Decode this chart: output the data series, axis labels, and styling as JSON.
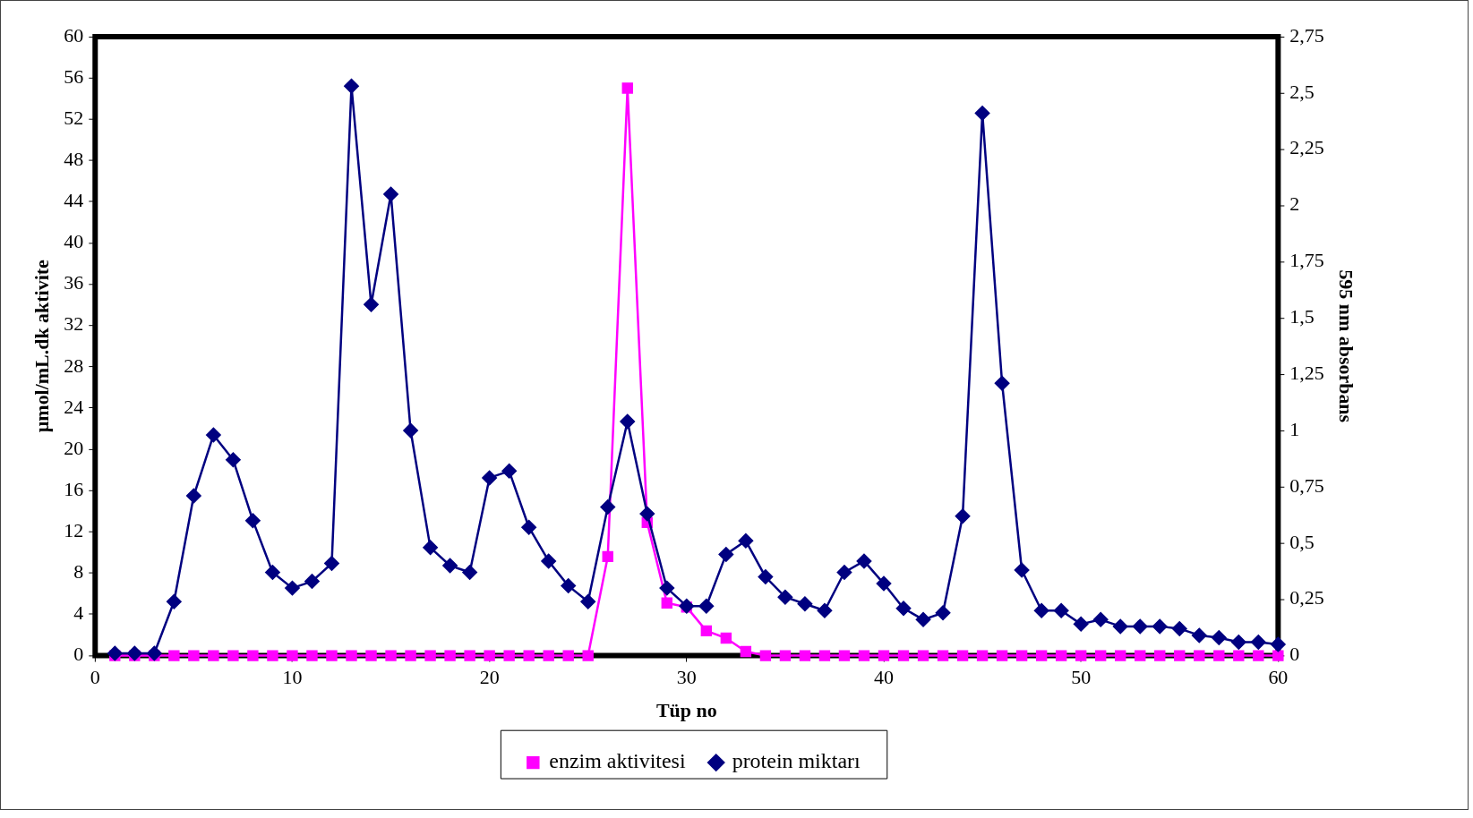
{
  "chart_data": {
    "type": "line",
    "xlabel": "Tüp no",
    "ylabel": "µmol/mL.dk aktivite",
    "y2label": "595 nm absorbans",
    "x": [
      1,
      2,
      3,
      4,
      5,
      6,
      7,
      8,
      9,
      10,
      11,
      12,
      13,
      14,
      15,
      16,
      17,
      18,
      19,
      20,
      21,
      22,
      23,
      24,
      25,
      26,
      27,
      28,
      29,
      30,
      31,
      32,
      33,
      34,
      35,
      36,
      37,
      38,
      39,
      40,
      41,
      42,
      43,
      44,
      45,
      46,
      47,
      48,
      49,
      50,
      51,
      52,
      53,
      54,
      55,
      56,
      57,
      58,
      59,
      60
    ],
    "series": [
      {
        "name": "enzim aktivitesi",
        "color": "#ff00ff",
        "marker": "square",
        "values": [
          0,
          0,
          0,
          0,
          0,
          0,
          0,
          0,
          0,
          0,
          0,
          0,
          0,
          0,
          0,
          0,
          0,
          0,
          0,
          0,
          0,
          0,
          0,
          0,
          0,
          9.6,
          55,
          12.9,
          5.1,
          4.7,
          2.4,
          1.7,
          0.4,
          0,
          0,
          0,
          0,
          0,
          0,
          0,
          0,
          0,
          0,
          0,
          0,
          0,
          0,
          0,
          0,
          0,
          0,
          0,
          0,
          0,
          0,
          0,
          0,
          0,
          0,
          0
        ]
      },
      {
        "name": "protein miktarı",
        "color": "#000080",
        "marker": "diamond",
        "axis": "y2",
        "values": [
          0.01,
          0.01,
          0.01,
          0.24,
          0.71,
          0.98,
          0.87,
          0.6,
          0.37,
          0.3,
          0.33,
          0.41,
          2.53,
          1.56,
          2.05,
          1,
          0.48,
          0.4,
          0.37,
          0.79,
          0.82,
          0.57,
          0.42,
          0.31,
          0.24,
          0.66,
          1.04,
          0.63,
          0.3,
          0.22,
          0.22,
          0.45,
          0.51,
          0.35,
          0.26,
          0.23,
          0.2,
          0.37,
          0.42,
          0.32,
          0.21,
          0.16,
          0.19,
          0.62,
          2.41,
          1.21,
          0.38,
          0.2,
          0.2,
          0.14,
          0.16,
          0.13,
          0.13,
          0.13,
          0.12,
          0.09,
          0.08,
          0.06,
          0.06,
          0.05
        ]
      }
    ],
    "xlim": [
      0,
      60
    ],
    "xticks": [
      0,
      10,
      20,
      30,
      40,
      50,
      60
    ],
    "ylim": [
      0,
      60
    ],
    "yticks": [
      0,
      4,
      8,
      12,
      16,
      20,
      24,
      28,
      32,
      36,
      40,
      44,
      48,
      52,
      56,
      60
    ],
    "y2lim": [
      0,
      2.75
    ],
    "y2ticks": [
      0,
      {
        "value": 0.25,
        "label": "0,25"
      },
      {
        "value": 0.5,
        "label": "0,5"
      },
      {
        "value": 0.75,
        "label": "0,75"
      },
      1,
      {
        "value": 1.25,
        "label": "1,25"
      },
      {
        "value": 1.5,
        "label": "1,5"
      },
      {
        "value": 1.75,
        "label": "1,75"
      },
      2,
      {
        "value": 2.25,
        "label": "2,25"
      },
      {
        "value": 2.5,
        "label": "2,5"
      },
      {
        "value": 2.75,
        "label": "2,75"
      }
    ],
    "grid": false,
    "legend": "bottom",
    "line_style": "solid"
  }
}
